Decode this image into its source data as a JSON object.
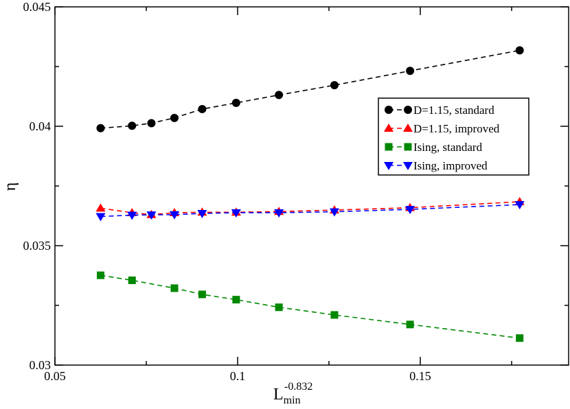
{
  "chart_data": {
    "type": "line",
    "title": "",
    "xlabel": "L",
    "xlabel_sub": "min",
    "xlabel_sup": "-0.832",
    "ylabel": "η",
    "xlim": [
      0.05,
      0.1906
    ],
    "ylim": [
      0.03,
      0.045
    ],
    "xticks": [
      0.05,
      0.1,
      0.15
    ],
    "xtick_labels": [
      "0.05",
      "0.1",
      "0.15"
    ],
    "yticks": [
      0.03,
      0.035,
      0.04,
      0.045
    ],
    "ytick_labels": [
      "0.03",
      "0.035",
      "0.04",
      "0.045"
    ],
    "legend_position": "upper-right",
    "series": [
      {
        "name": "D=1.15, standard",
        "color": "#000000",
        "marker": "circle",
        "x": [
          0.0625,
          0.0711,
          0.0764,
          0.0827,
          0.0903,
          0.0996,
          0.1113,
          0.1265,
          0.1472,
          0.1772
        ],
        "y": [
          0.03992,
          0.04002,
          0.04013,
          0.04035,
          0.04072,
          0.04098,
          0.04131,
          0.04172,
          0.04232,
          0.04318
        ]
      },
      {
        "name": "D=1.15, improved",
        "color": "#ff0000",
        "marker": "triangle-up",
        "x": [
          0.0625,
          0.0711,
          0.0764,
          0.0827,
          0.0903,
          0.0996,
          0.1113,
          0.1265,
          0.1472,
          0.1772
        ],
        "y": [
          0.03657,
          0.03638,
          0.0363,
          0.03638,
          0.0364,
          0.0364,
          0.03643,
          0.03649,
          0.03659,
          0.03684
        ]
      },
      {
        "name": "Ising, standard",
        "color": "#008800",
        "marker": "square",
        "x": [
          0.0625,
          0.0711,
          0.0827,
          0.0903,
          0.0996,
          0.1113,
          0.1265,
          0.1472,
          0.1772
        ],
        "y": [
          0.03376,
          0.03355,
          0.03322,
          0.03296,
          0.03274,
          0.03242,
          0.0321,
          0.0317,
          0.03113
        ]
      },
      {
        "name": "Ising, improved",
        "color": "#0000ff",
        "marker": "triangle-down",
        "x": [
          0.0625,
          0.0711,
          0.0764,
          0.0827,
          0.0903,
          0.0996,
          0.1113,
          0.1265,
          0.1472,
          0.1772
        ],
        "y": [
          0.03622,
          0.03628,
          0.03629,
          0.0363,
          0.03635,
          0.03638,
          0.03638,
          0.03642,
          0.03652,
          0.03672
        ]
      }
    ]
  }
}
